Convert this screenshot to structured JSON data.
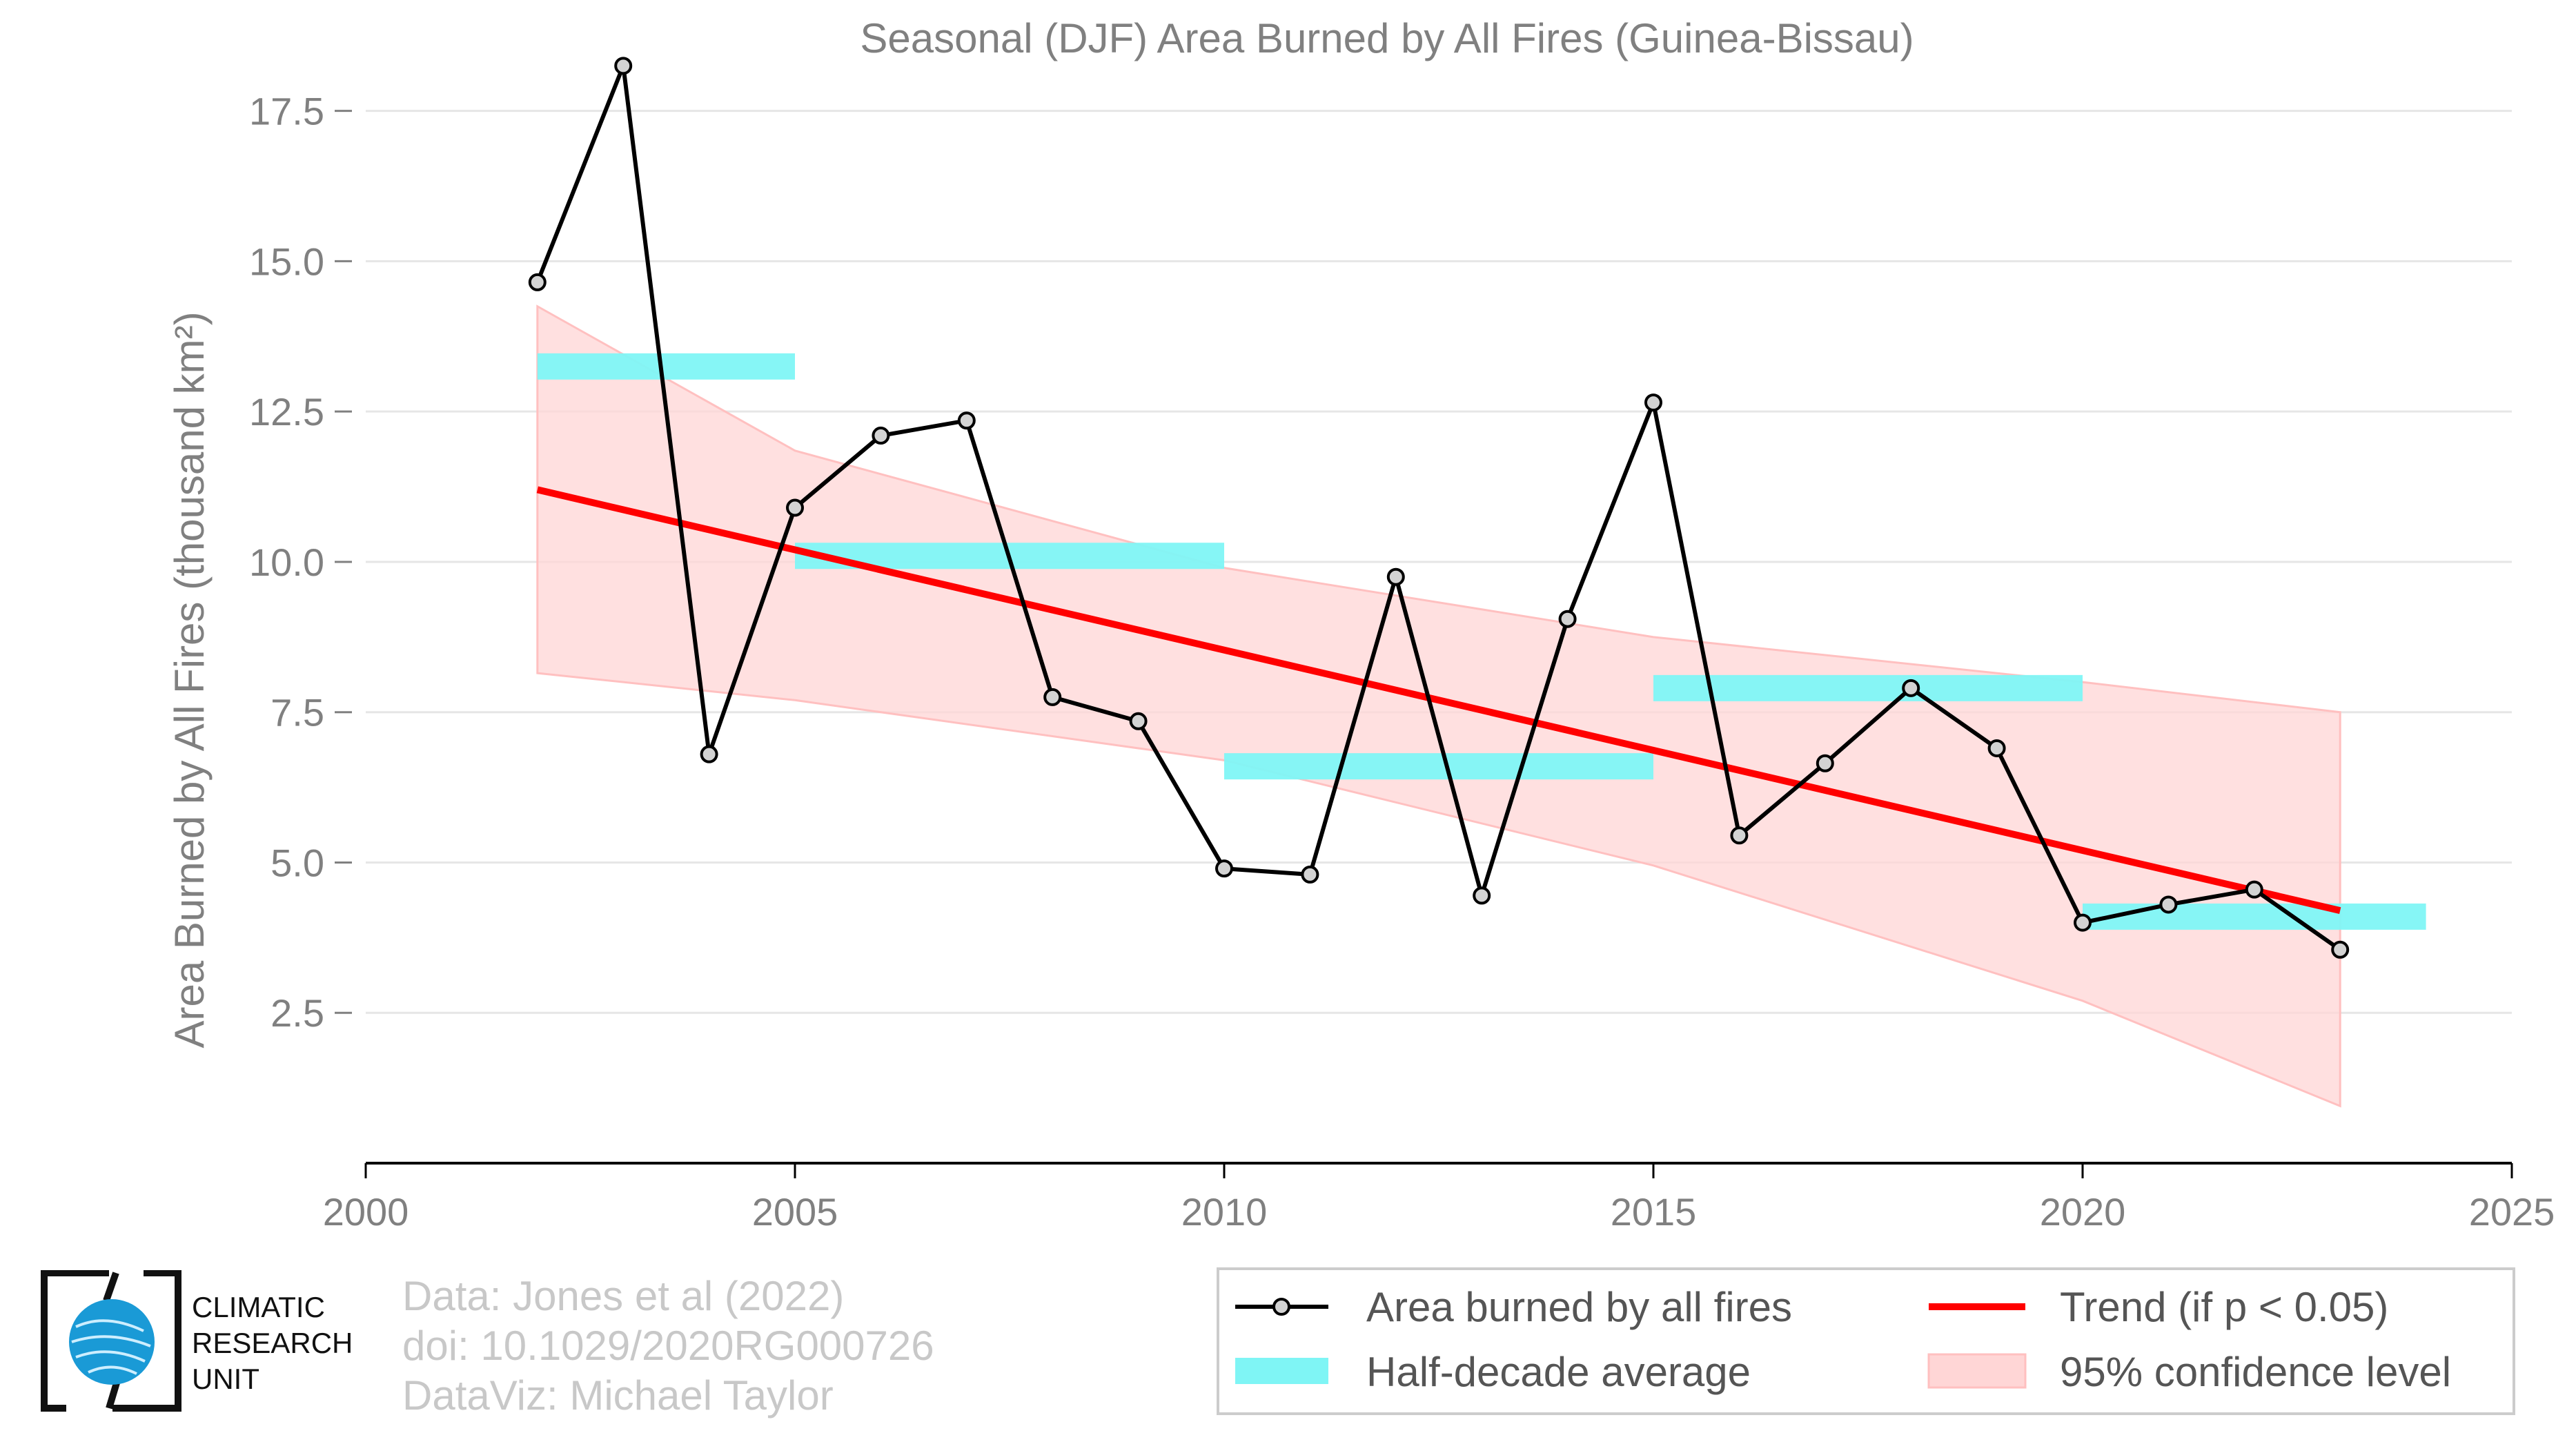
{
  "chart_data": {
    "type": "line",
    "title": "Seasonal (DJF) Area Burned by All Fires (Guinea-Bissau)",
    "ylabel": "Area Burned by All Fires (thousand km²)",
    "xlabel": "",
    "xlim": [
      2000,
      2025
    ],
    "ylim": [
      0,
      19
    ],
    "xticks": [
      "2000",
      "2005",
      "2010",
      "2015",
      "2020",
      "2025"
    ],
    "yticks": [
      "2.5",
      "5.0",
      "7.5",
      "10.0",
      "12.5",
      "15.0",
      "17.5"
    ],
    "grid": "horizontal",
    "legend_position": "bottom-right",
    "series": [
      {
        "name": "Area burned by all fires",
        "color": "#000000",
        "x": [
          2002,
          2003,
          2004,
          2005,
          2006,
          2007,
          2008,
          2009,
          2010,
          2011,
          2012,
          2013,
          2014,
          2015,
          2016,
          2017,
          2018,
          2019,
          2020,
          2021,
          2022,
          2023
        ],
        "y": [
          14.65,
          18.25,
          6.8,
          10.9,
          12.1,
          12.35,
          7.75,
          7.35,
          4.9,
          4.8,
          9.75,
          4.45,
          9.05,
          12.65,
          5.45,
          6.65,
          7.9,
          6.9,
          4.0,
          4.3,
          4.55,
          3.55
        ]
      }
    ],
    "half_decade_average": {
      "name": "Half-decade average",
      "color": "#7ff5f5",
      "segments": [
        {
          "x0": 2002,
          "x1": 2005,
          "y": 13.25
        },
        {
          "x0": 2005,
          "x1": 2010,
          "y": 10.1
        },
        {
          "x0": 2010,
          "x1": 2015,
          "y": 6.6
        },
        {
          "x0": 2015,
          "x1": 2020,
          "y": 7.9
        },
        {
          "x0": 2020,
          "x1": 2024,
          "y": 4.1
        }
      ]
    },
    "trend": {
      "name": "Trend (if p < 0.05)",
      "color": "#ff0000",
      "x": [
        2002,
        2023
      ],
      "y": [
        11.2,
        4.2
      ]
    },
    "confidence_band": {
      "name": "95% confidence level",
      "color": "#ffd6d6",
      "x": [
        2002,
        2005,
        2010,
        2015,
        2020,
        2023
      ],
      "lower": [
        8.15,
        7.7,
        6.7,
        4.95,
        2.7,
        0.95
      ],
      "upper": [
        14.25,
        11.85,
        9.9,
        8.75,
        8.0,
        7.5
      ]
    }
  },
  "credits": {
    "line1": "Data: Jones et al (2022)",
    "line2": "doi: 10.1029/2020RG000726",
    "line3": "DataViz: Michael Taylor"
  },
  "logo": {
    "line1": "CLIMATIC",
    "line2": "RESEARCH",
    "line3": "UNIT"
  }
}
